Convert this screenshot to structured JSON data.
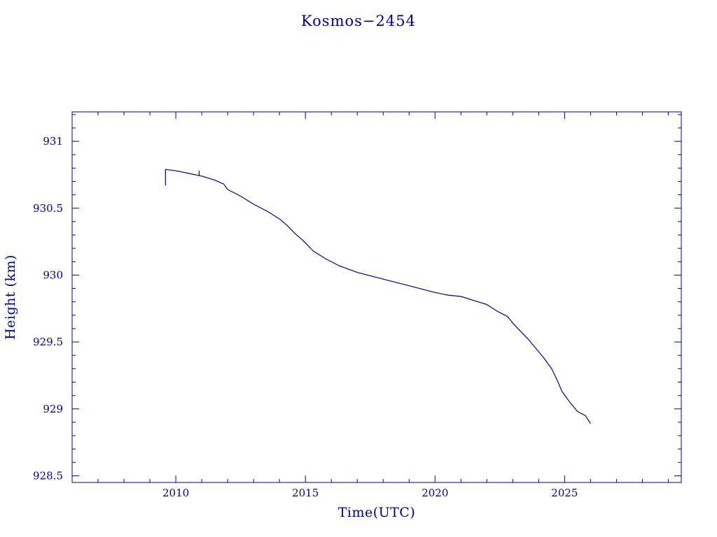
{
  "colors": {
    "axis": "#00008b",
    "line": "#00008b",
    "background": "#ffffff"
  },
  "chart_data": {
    "type": "line",
    "title": "Kosmos−2454",
    "xlabel": "Time(UTC)",
    "ylabel": "Height (km)",
    "xlim": [
      2006.0,
      2029.5
    ],
    "ylim": [
      928.45,
      931.22
    ],
    "xticks": [
      2010,
      2015,
      2020,
      2025
    ],
    "xtick_labels": [
      "2010",
      "2015",
      "2020",
      "2025"
    ],
    "yticks": [
      928.5,
      929,
      929.5,
      930,
      930.5,
      931
    ],
    "ytick_labels": [
      "928.5",
      "929",
      "929.5",
      "930",
      "930.5",
      "931"
    ],
    "x_minor_step": 1,
    "y_minor_step": 0.1,
    "grid": false,
    "legend": "none",
    "series": [
      {
        "x": [
          2009.6,
          2010.0,
          2010.5,
          2011.0,
          2011.5,
          2011.85,
          2012.0,
          2012.5,
          2013.0,
          2013.5,
          2014.0,
          2014.3,
          2014.6,
          2014.9,
          2015.3,
          2015.8,
          2016.3,
          2017.0,
          2018.0,
          2019.0,
          2020.0,
          2020.5,
          2021.0,
          2021.5,
          2022.0,
          2022.4,
          2022.8,
          2023.0,
          2023.3,
          2023.6,
          2023.9,
          2024.2,
          2024.5,
          2024.7,
          2024.9,
          2025.2,
          2025.5,
          2025.8,
          2026.0
        ],
        "y": [
          930.79,
          930.78,
          930.76,
          930.74,
          930.71,
          930.68,
          930.64,
          930.59,
          930.53,
          930.48,
          930.42,
          930.37,
          930.31,
          930.26,
          930.18,
          930.12,
          930.07,
          930.02,
          929.97,
          929.92,
          929.87,
          929.85,
          929.84,
          929.81,
          929.78,
          929.73,
          929.69,
          929.64,
          929.58,
          929.52,
          929.45,
          929.38,
          929.3,
          929.22,
          929.13,
          929.05,
          928.98,
          928.95,
          928.89
        ]
      }
    ],
    "glitches": [
      {
        "x": 2009.6,
        "y_from": 930.79,
        "y_to": 930.67
      },
      {
        "x": 2010.9,
        "y_from": 930.74,
        "y_to": 930.78
      }
    ]
  }
}
